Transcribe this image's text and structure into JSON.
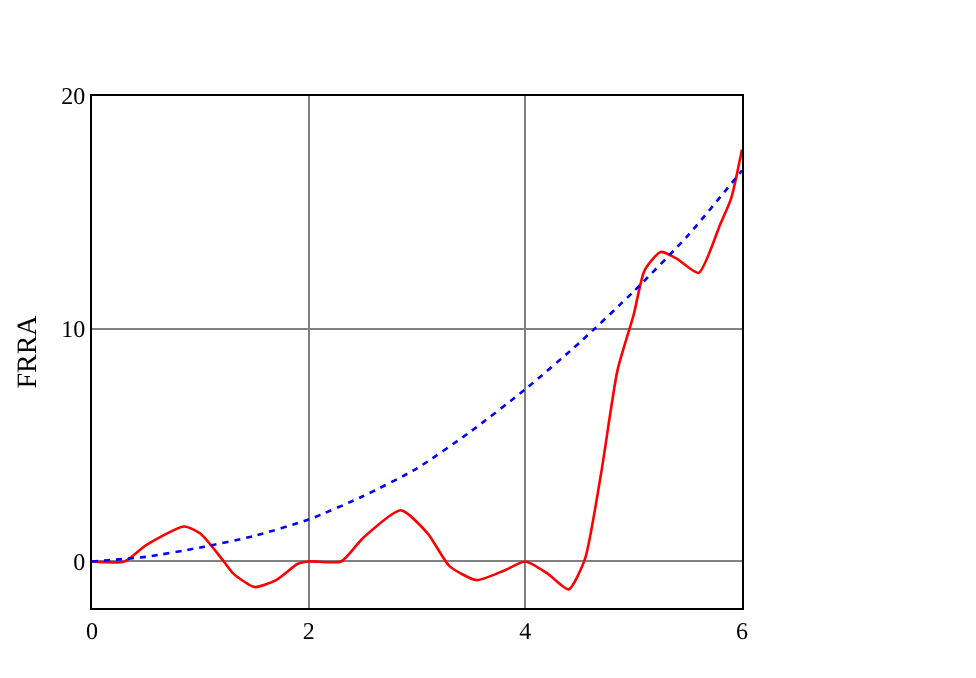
{
  "chart_data": {
    "type": "line",
    "ylabel": "FRRA",
    "xlim": [
      0,
      6
    ],
    "ylim": [
      -2,
      20
    ],
    "xticks": [
      0,
      2,
      4,
      6
    ],
    "yticks": [
      0,
      10,
      20
    ],
    "grid": true,
    "legend": false,
    "series": [
      {
        "color": "#ff0000",
        "line_style": "solid",
        "x": [
          0,
          0.3,
          0.5,
          0.85,
          1.0,
          1.2,
          1.3,
          1.5,
          1.7,
          1.9,
          2.0,
          2.3,
          2.5,
          2.85,
          3.1,
          3.3,
          3.55,
          3.8,
          4.0,
          4.2,
          4.4,
          4.55,
          4.7,
          4.85,
          5.0,
          5.1,
          5.25,
          5.4,
          5.6,
          5.8,
          5.9,
          6.0
        ],
        "values": [
          0,
          0,
          0.7,
          1.5,
          1.2,
          0.1,
          -0.5,
          -1.1,
          -0.8,
          -0.1,
          0,
          0,
          1,
          2.2,
          1.2,
          -0.2,
          -0.8,
          -0.4,
          0,
          -0.5,
          -1.2,
          0.1,
          3.8,
          8.2,
          10.6,
          12.5,
          13.3,
          13,
          12.4,
          14.5,
          15.6,
          17.7
        ]
      },
      {
        "color": "#0000ff",
        "line_style": "dotted",
        "x": [
          0,
          0.5,
          1,
          1.5,
          2,
          2.5,
          3,
          3.5,
          4,
          4.5,
          5,
          5.5,
          6
        ],
        "values": [
          0,
          0.2,
          0.6,
          1.1,
          1.8,
          2.8,
          4.0,
          5.6,
          7.4,
          9.4,
          11.6,
          14.0,
          16.8
        ]
      }
    ]
  }
}
